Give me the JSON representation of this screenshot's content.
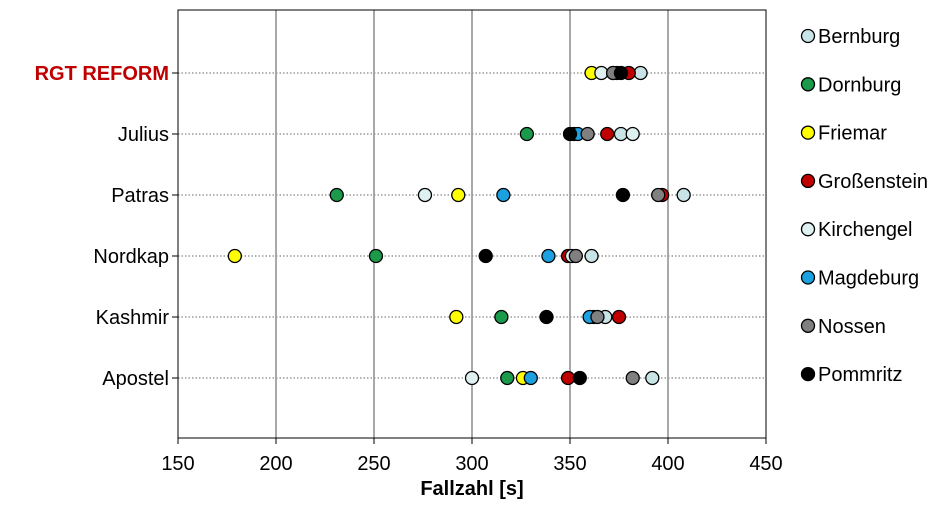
{
  "chart_data": {
    "type": "scatter",
    "xlabel": "Fallzahl [s]",
    "xlim": [
      150,
      450
    ],
    "xticks": [
      150,
      200,
      250,
      300,
      350,
      400,
      450
    ],
    "grid": "vertical",
    "legend_position": "right",
    "categories": [
      "RGT REFORM",
      "Julius",
      "Patras",
      "Nordkap",
      "Kashmir",
      "Apostel"
    ],
    "highlight_category": "RGT REFORM",
    "highlight_color": "#c00000",
    "series": [
      {
        "name": "Bernburg",
        "color": "#c9e4e6",
        "values": [
          386,
          376,
          408,
          361,
          368,
          392
        ]
      },
      {
        "name": "Dornburg",
        "color": "#1a9a4a",
        "values": [
          374,
          328,
          231,
          251,
          315,
          318
        ]
      },
      {
        "name": "Friemar",
        "color": "#ffff00",
        "values": [
          361,
          352,
          293,
          179,
          292,
          326
        ]
      },
      {
        "name": "Großenstein",
        "color": "#c00000",
        "values": [
          380,
          369,
          397,
          349,
          375,
          349
        ]
      },
      {
        "name": "Kirchengel",
        "color": "#dff0f0",
        "values": [
          366,
          382,
          276,
          351,
          362,
          300
        ]
      },
      {
        "name": "Magdeburg",
        "color": "#1ba0e0",
        "values": [
          372,
          354,
          316,
          339,
          360,
          330
        ]
      },
      {
        "name": "Nossen",
        "color": "#808080",
        "values": [
          372,
          359,
          395,
          353,
          364,
          382
        ]
      },
      {
        "name": "Pommritz",
        "color": "#000000",
        "values": [
          376,
          350,
          377,
          307,
          338,
          355
        ]
      }
    ]
  }
}
